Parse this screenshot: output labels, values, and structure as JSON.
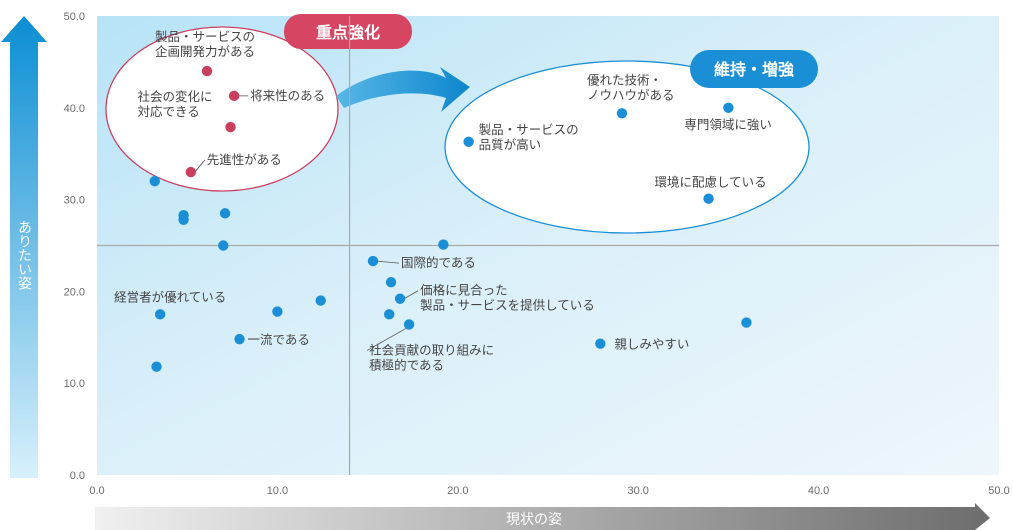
{
  "chart_data": {
    "type": "scatter",
    "xlabel": "現状の姿",
    "ylabel": "ありたい姿",
    "xlim": [
      0,
      50
    ],
    "ylim": [
      0,
      50
    ],
    "xticks": [
      "0.0",
      "10.0",
      "20.0",
      "30.0",
      "40.0",
      "50.0"
    ],
    "yticks": [
      "0.0",
      "10.0",
      "20.0",
      "30.0",
      "40.0",
      "50.0"
    ],
    "reference_lines": {
      "x": 14.0,
      "y": 25.0
    },
    "colors": {
      "blue_point": "#1a8fd6",
      "red_point": "#c9405f",
      "red_badge": "#d64562",
      "blue_badge": "#1a8fd6",
      "ref_line": "#a9a9a9"
    },
    "groups": [
      {
        "label": "重点強化",
        "color": "#d64562"
      },
      {
        "label": "維持・増強",
        "color": "#1a8fd6"
      }
    ],
    "points": [
      {
        "x": 6.1,
        "y": 44.0,
        "color": "red",
        "label": [
          "製品・サービスの",
          "企画開発力がある"
        ]
      },
      {
        "x": 7.6,
        "y": 41.3,
        "color": "red",
        "label": [
          "将来性のある"
        ]
      },
      {
        "x": 7.4,
        "y": 37.9,
        "color": "red",
        "label": [
          "社会の変化に",
          "対応できる"
        ]
      },
      {
        "x": 5.2,
        "y": 33.0,
        "color": "red",
        "label": [
          "先進性がある"
        ]
      },
      {
        "x": 3.2,
        "y": 32.0,
        "color": "blue",
        "label": []
      },
      {
        "x": 4.8,
        "y": 28.3,
        "color": "blue",
        "label": []
      },
      {
        "x": 4.8,
        "y": 27.8,
        "color": "blue",
        "label": []
      },
      {
        "x": 7.1,
        "y": 28.5,
        "color": "blue",
        "label": []
      },
      {
        "x": 7.0,
        "y": 25.0,
        "color": "blue",
        "label": []
      },
      {
        "x": 3.5,
        "y": 17.5,
        "color": "blue",
        "label": [
          "経営者が優れている"
        ]
      },
      {
        "x": 3.3,
        "y": 11.8,
        "color": "blue",
        "label": []
      },
      {
        "x": 7.9,
        "y": 14.8,
        "color": "blue",
        "label": [
          "一流である"
        ]
      },
      {
        "x": 10.0,
        "y": 17.8,
        "color": "blue",
        "label": []
      },
      {
        "x": 12.4,
        "y": 19.0,
        "color": "blue",
        "label": []
      },
      {
        "x": 15.3,
        "y": 23.3,
        "color": "blue",
        "label": [
          "国際的である"
        ]
      },
      {
        "x": 16.3,
        "y": 21.0,
        "color": "blue",
        "label": []
      },
      {
        "x": 16.8,
        "y": 19.2,
        "color": "blue",
        "label": [
          "価格に見合った",
          "製品・サービスを提供している"
        ]
      },
      {
        "x": 16.2,
        "y": 17.5,
        "color": "blue",
        "label": []
      },
      {
        "x": 17.3,
        "y": 16.4,
        "color": "blue",
        "label": [
          "社会貢献の取り組みに",
          "積極的である"
        ]
      },
      {
        "x": 19.2,
        "y": 25.1,
        "color": "blue",
        "label": []
      },
      {
        "x": 20.6,
        "y": 36.3,
        "color": "blue",
        "label": [
          "製品・サービスの",
          "品質が高い"
        ]
      },
      {
        "x": 29.1,
        "y": 39.4,
        "color": "blue",
        "label": [
          "優れた技術・",
          "ノウハウがある"
        ]
      },
      {
        "x": 35.0,
        "y": 40.0,
        "color": "blue",
        "label": [
          "専門領域に強い"
        ]
      },
      {
        "x": 33.9,
        "y": 30.1,
        "color": "blue",
        "label": [
          "環境に配慮している"
        ]
      },
      {
        "x": 27.9,
        "y": 14.3,
        "color": "blue",
        "label": [
          "親しみやすい"
        ]
      },
      {
        "x": 36.0,
        "y": 16.6,
        "color": "blue",
        "label": []
      }
    ]
  }
}
